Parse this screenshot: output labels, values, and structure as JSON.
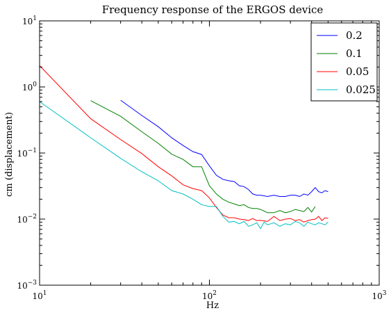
{
  "chart_data": {
    "type": "line",
    "title": "Frequency response of the ERGOS device",
    "xlabel": "Hz",
    "ylabel": "cm (displacement)",
    "xscale": "log",
    "yscale": "log",
    "xlim": [
      10,
      1000
    ],
    "ylim": [
      0.001,
      10
    ],
    "x_ticks": [
      {
        "value": 10,
        "base": "10",
        "exp": "1"
      },
      {
        "value": 100,
        "base": "10",
        "exp": "2"
      },
      {
        "value": 1000,
        "base": "10",
        "exp": "3"
      }
    ],
    "y_ticks": [
      {
        "value": 0.001,
        "base": "10",
        "exp": "−3"
      },
      {
        "value": 0.01,
        "base": "10",
        "exp": "−2"
      },
      {
        "value": 0.1,
        "base": "10",
        "exp": "−1"
      },
      {
        "value": 1,
        "base": "10",
        "exp": "0"
      },
      {
        "value": 10,
        "base": "10",
        "exp": "1"
      }
    ],
    "grid": false,
    "legend_position": "top-right",
    "series": [
      {
        "name": "0.2",
        "color": "#0000ff",
        "x": [
          30,
          40,
          50,
          60,
          70,
          80,
          90,
          100,
          110,
          120,
          130,
          140,
          150,
          160,
          170,
          180,
          190,
          200,
          220,
          240,
          260,
          280,
          300,
          320,
          340,
          360,
          380,
          400,
          420,
          440,
          460,
          480,
          500
        ],
        "y": [
          0.63,
          0.37,
          0.25,
          0.17,
          0.13,
          0.105,
          0.095,
          0.064,
          0.046,
          0.04,
          0.038,
          0.037,
          0.032,
          0.031,
          0.028,
          0.024,
          0.023,
          0.023,
          0.022,
          0.023,
          0.022,
          0.022,
          0.023,
          0.023,
          0.022,
          0.024,
          0.023,
          0.026,
          0.03,
          0.026,
          0.025,
          0.027,
          0.026
        ]
      },
      {
        "name": "0.1",
        "color": "#008000",
        "x": [
          20,
          30,
          40,
          50,
          60,
          70,
          80,
          90,
          100,
          110,
          120,
          130,
          140,
          150,
          160,
          170,
          180,
          190,
          200,
          220,
          240,
          260,
          280,
          300,
          320,
          340,
          360,
          380,
          400,
          420
        ],
        "y": [
          0.62,
          0.36,
          0.21,
          0.14,
          0.096,
          0.08,
          0.062,
          0.062,
          0.032,
          0.024,
          0.02,
          0.018,
          0.017,
          0.016,
          0.0165,
          0.015,
          0.0145,
          0.0145,
          0.014,
          0.0125,
          0.0125,
          0.0135,
          0.0125,
          0.013,
          0.014,
          0.0135,
          0.013,
          0.015,
          0.0128,
          0.0155
        ]
      },
      {
        "name": "0.05",
        "color": "#ff0000",
        "x": [
          10,
          20,
          30,
          40,
          50,
          60,
          70,
          80,
          90,
          100,
          110,
          120,
          130,
          140,
          150,
          160,
          170,
          180,
          190,
          200,
          220,
          240,
          260,
          280,
          300,
          320,
          340,
          360,
          380,
          400,
          420,
          440,
          460,
          480,
          500
        ],
        "y": [
          2.1,
          0.33,
          0.16,
          0.098,
          0.062,
          0.045,
          0.033,
          0.029,
          0.027,
          0.021,
          0.015,
          0.0115,
          0.0105,
          0.0105,
          0.01,
          0.0098,
          0.0095,
          0.0102,
          0.0095,
          0.0096,
          0.0092,
          0.011,
          0.0095,
          0.01,
          0.0102,
          0.0095,
          0.0098,
          0.009,
          0.0095,
          0.0098,
          0.01,
          0.011,
          0.0095,
          0.0105,
          0.0102
        ]
      },
      {
        "name": "0.025",
        "color": "#00bfbf",
        "x": [
          10,
          20,
          30,
          40,
          50,
          60,
          70,
          80,
          90,
          100,
          110,
          120,
          130,
          140,
          150,
          160,
          170,
          180,
          190,
          200,
          210,
          220,
          240,
          260,
          280,
          300,
          320,
          340,
          360,
          380,
          400,
          420,
          440,
          460,
          480,
          500
        ],
        "y": [
          0.6,
          0.17,
          0.083,
          0.052,
          0.038,
          0.027,
          0.024,
          0.02,
          0.0165,
          0.0155,
          0.0155,
          0.011,
          0.009,
          0.0092,
          0.0085,
          0.0092,
          0.0078,
          0.0082,
          0.0088,
          0.0072,
          0.009,
          0.0082,
          0.0088,
          0.0078,
          0.0085,
          0.0082,
          0.0092,
          0.0088,
          0.0078,
          0.009,
          0.0085,
          0.0082,
          0.0088,
          0.0085,
          0.0082,
          0.009
        ]
      }
    ]
  }
}
